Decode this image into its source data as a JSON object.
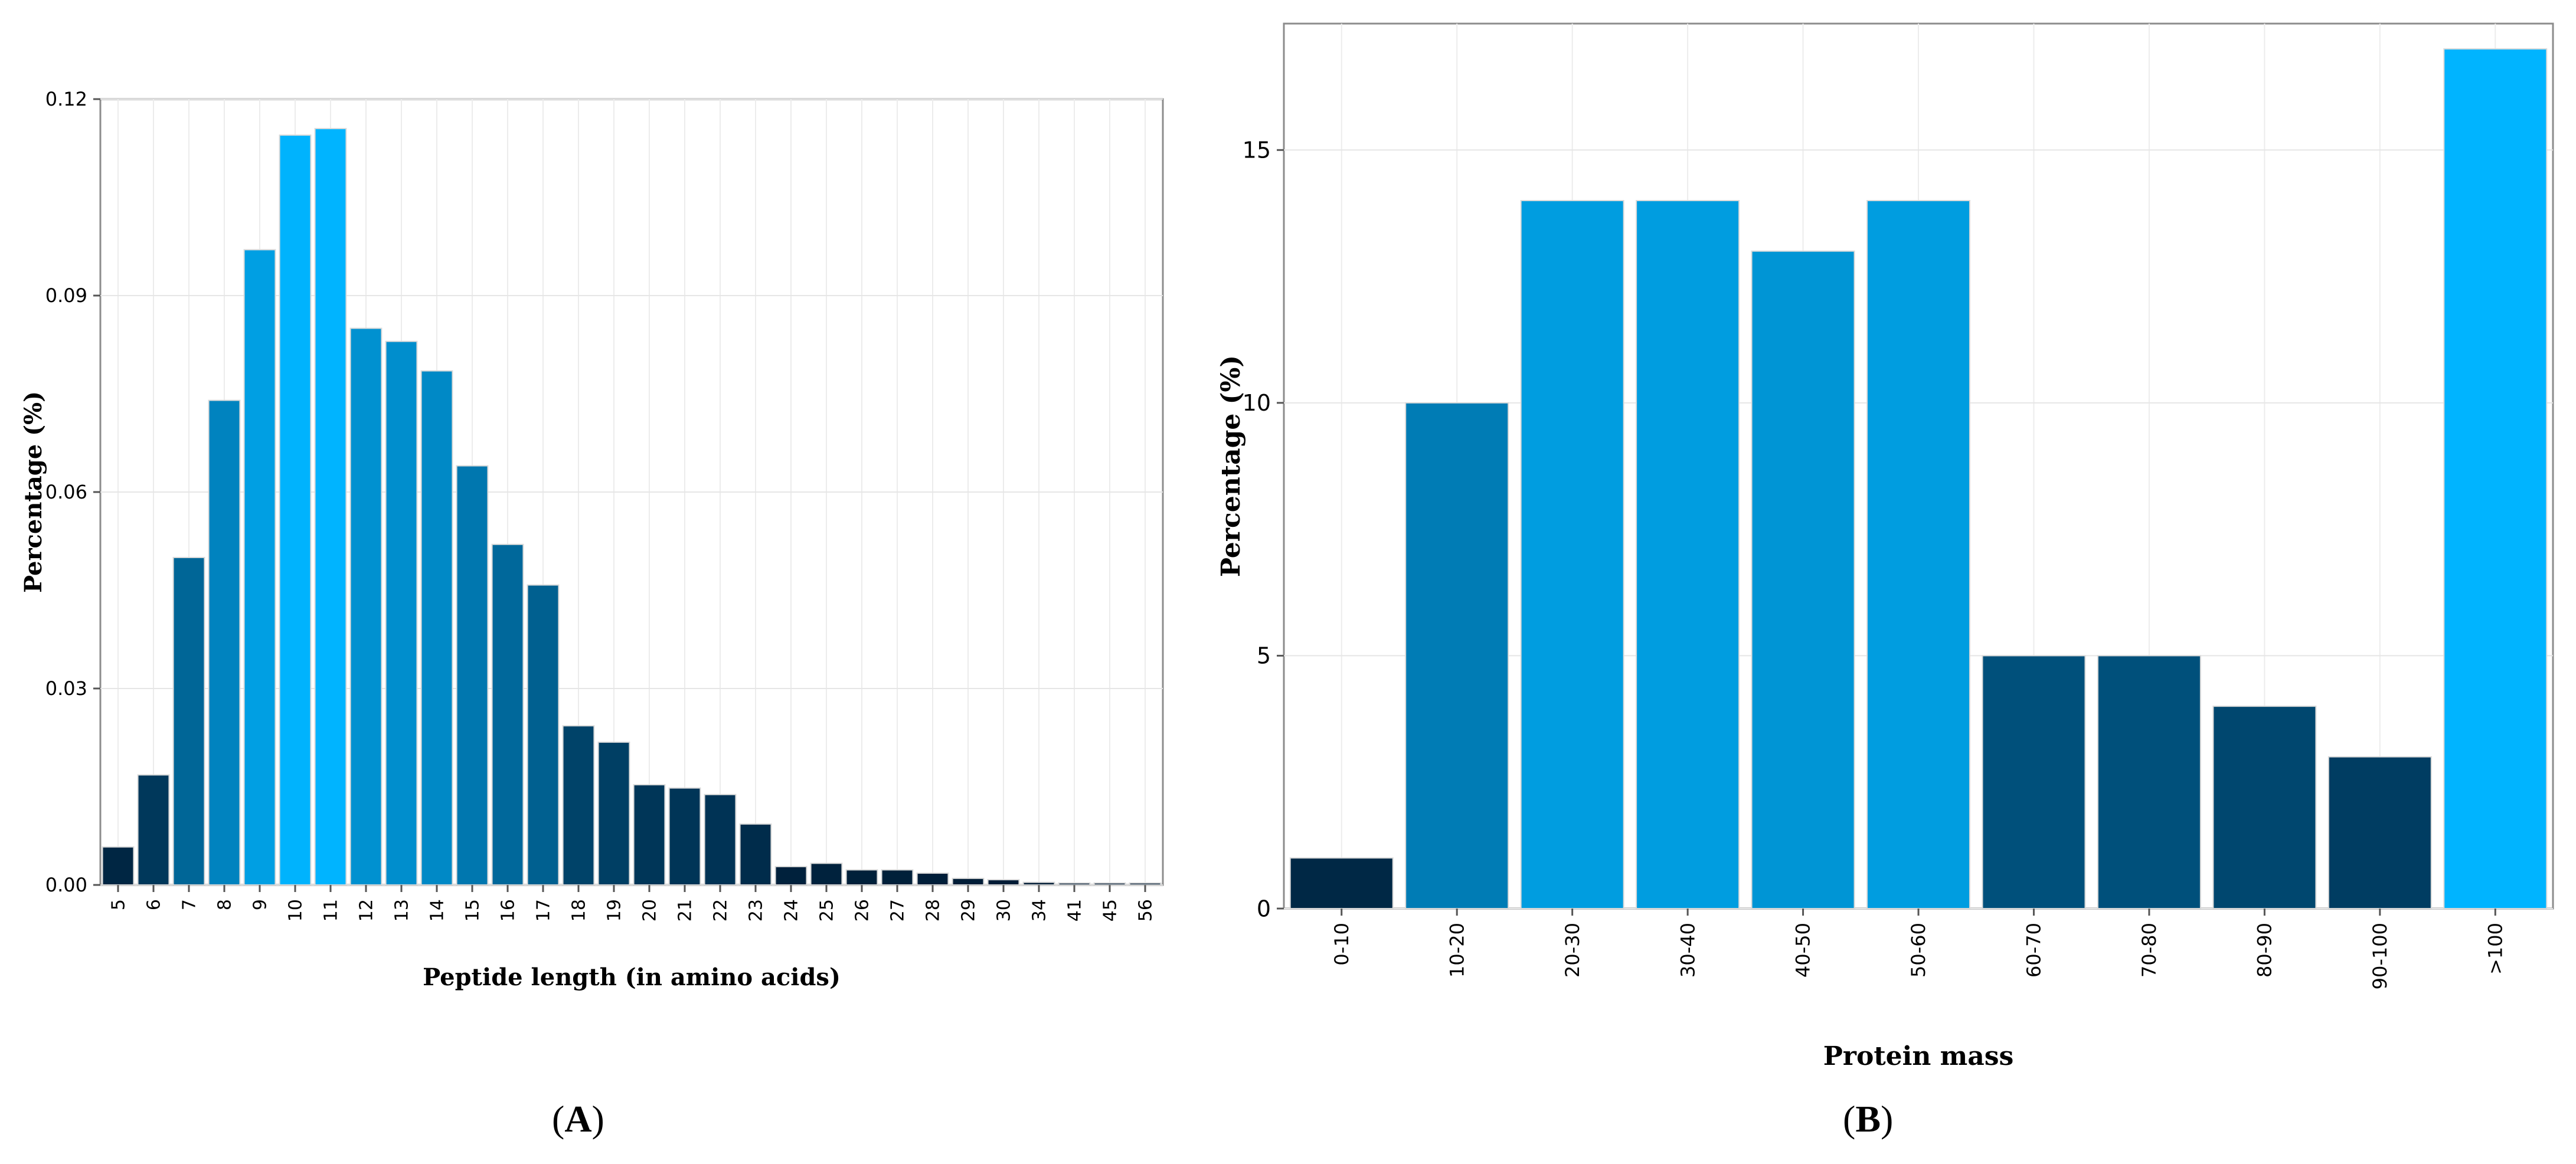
{
  "panels": [
    {
      "letter": "A"
    },
    {
      "letter": "B"
    }
  ],
  "chart_data": [
    {
      "type": "bar",
      "xlabel": "Peptide length (in amino acids)",
      "ylabel": "Percentage (%)",
      "ylim": [
        0,
        0.12
      ],
      "yticks": [
        "0.00",
        "0.03",
        "0.06",
        "0.09",
        "0.12"
      ],
      "ytick_values": [
        0,
        0.03,
        0.06,
        0.09,
        0.12
      ],
      "grid": true,
      "categories": [
        "5",
        "6",
        "7",
        "8",
        "9",
        "10",
        "11",
        "12",
        "13",
        "14",
        "15",
        "16",
        "17",
        "18",
        "19",
        "20",
        "21",
        "22",
        "23",
        "24",
        "25",
        "26",
        "27",
        "28",
        "29",
        "30",
        "34",
        "41",
        "45",
        "56"
      ],
      "values": [
        0.0058,
        0.0168,
        0.05,
        0.074,
        0.097,
        0.1145,
        0.1155,
        0.085,
        0.083,
        0.0785,
        0.064,
        0.052,
        0.0458,
        0.0243,
        0.0218,
        0.0153,
        0.0148,
        0.0138,
        0.0093,
        0.0028,
        0.0033,
        0.0023,
        0.0023,
        0.0018,
        0.001,
        0.0008,
        0.0004,
        0.0003,
        0.0003,
        0.0003
      ],
      "color_scale": [
        "#001a33",
        "#00b4ff"
      ]
    },
    {
      "type": "bar",
      "xlabel": "Protein mass",
      "ylabel": "Percentage (%)",
      "ylim": [
        0,
        17.5
      ],
      "yticks": [
        "0",
        "5",
        "10",
        "15"
      ],
      "ytick_values": [
        0,
        5,
        10,
        15
      ],
      "grid": true,
      "categories": [
        "0-10",
        "10-20",
        "20-30",
        "30-40",
        "40-50",
        "50-60",
        "60-70",
        "70-80",
        "80-90",
        "90-100",
        ">100"
      ],
      "values": [
        1,
        10,
        14,
        14,
        13,
        14,
        5,
        5,
        4,
        3,
        17
      ],
      "color_scale": [
        "#001a33",
        "#00b4ff"
      ]
    }
  ]
}
